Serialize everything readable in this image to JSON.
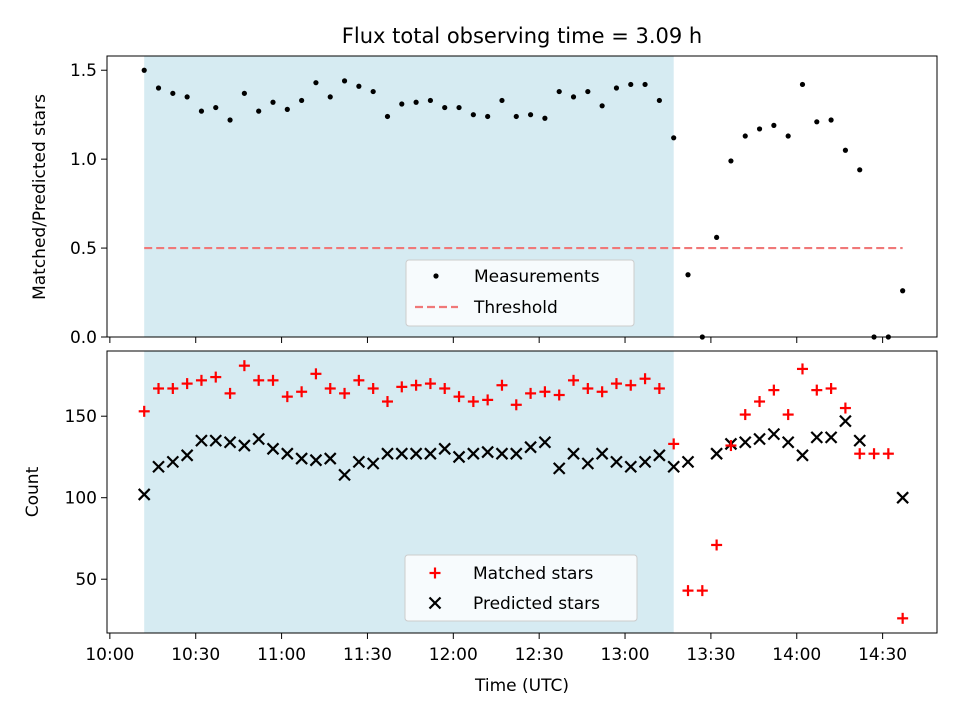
{
  "chart_data": [
    {
      "type": "scatter",
      "title": "Flux total observing time = 3.09 h",
      "xlabel": "",
      "ylabel": "Matched/Predicted stars",
      "ylim": [
        0,
        1.58
      ],
      "yticks": [
        0.0,
        0.5,
        1.0,
        1.5
      ],
      "ytick_labels": [
        "0.0",
        "0.5",
        "1.0",
        "1.5"
      ],
      "xlim": [
        "09:59",
        "14:49"
      ],
      "x_format": "HH:MM (UTC)",
      "highlight_span": [
        "10:12",
        "13:17"
      ],
      "highlight_color": "#add8e6",
      "legend_position": "lower-center",
      "series": [
        {
          "name": "Measurements",
          "marker": "dot",
          "color": "#000000",
          "x": [
            "10:12",
            "10:17",
            "10:22",
            "10:27",
            "10:32",
            "10:37",
            "10:42",
            "10:47",
            "10:52",
            "10:57",
            "11:02",
            "11:07",
            "11:12",
            "11:17",
            "11:22",
            "11:27",
            "11:32",
            "11:37",
            "11:42",
            "11:47",
            "11:52",
            "11:57",
            "12:02",
            "12:07",
            "12:12",
            "12:17",
            "12:22",
            "12:27",
            "12:32",
            "12:37",
            "12:42",
            "12:47",
            "12:52",
            "12:57",
            "13:02",
            "13:07",
            "13:12",
            "13:17",
            "13:22",
            "13:27",
            "13:32",
            "13:37",
            "13:42",
            "13:47",
            "13:52",
            "13:57",
            "14:02",
            "14:07",
            "14:12",
            "14:17",
            "14:22",
            "14:27",
            "14:32",
            "14:37"
          ],
          "values": [
            1.5,
            1.4,
            1.37,
            1.35,
            1.27,
            1.29,
            1.22,
            1.37,
            1.27,
            1.32,
            1.28,
            1.33,
            1.43,
            1.35,
            1.44,
            1.41,
            1.38,
            1.24,
            1.31,
            1.32,
            1.33,
            1.29,
            1.29,
            1.25,
            1.24,
            1.33,
            1.24,
            1.25,
            1.23,
            1.38,
            1.35,
            1.38,
            1.3,
            1.4,
            1.42,
            1.42,
            1.33,
            1.12,
            0.35,
            0.0,
            0.56,
            0.99,
            1.13,
            1.17,
            1.19,
            1.13,
            1.42,
            1.21,
            1.22,
            1.05,
            0.94,
            0.0,
            0.0,
            0.26
          ]
        },
        {
          "name": "Threshold",
          "marker": "dashed-line",
          "color": "#f07878",
          "x": [
            "10:12",
            "14:37"
          ],
          "values": [
            0.5,
            0.5
          ]
        }
      ]
    },
    {
      "type": "scatter",
      "title": "",
      "xlabel": "Time (UTC)",
      "ylabel": "Count",
      "ylim": [
        17,
        190
      ],
      "yticks": [
        50,
        100,
        150
      ],
      "ytick_labels": [
        "50",
        "100",
        "150"
      ],
      "xlim": [
        "09:59",
        "14:49"
      ],
      "xticks": [
        "10:00",
        "10:30",
        "11:00",
        "11:30",
        "12:00",
        "12:30",
        "13:00",
        "13:30",
        "14:00",
        "14:30"
      ],
      "highlight_span": [
        "10:12",
        "13:17"
      ],
      "highlight_color": "#add8e6",
      "legend_position": "lower-center",
      "series": [
        {
          "name": "Matched stars",
          "marker": "plus",
          "color": "#ff0000",
          "x": [
            "10:12",
            "10:17",
            "10:22",
            "10:27",
            "10:32",
            "10:37",
            "10:42",
            "10:47",
            "10:52",
            "10:57",
            "11:02",
            "11:07",
            "11:12",
            "11:17",
            "11:22",
            "11:27",
            "11:32",
            "11:37",
            "11:42",
            "11:47",
            "11:52",
            "11:57",
            "12:02",
            "12:07",
            "12:12",
            "12:17",
            "12:22",
            "12:27",
            "12:32",
            "12:37",
            "12:42",
            "12:47",
            "12:52",
            "12:57",
            "13:02",
            "13:07",
            "13:12",
            "13:17",
            "13:22",
            "13:27",
            "13:32",
            "13:37",
            "13:42",
            "13:47",
            "13:52",
            "13:57",
            "14:02",
            "14:07",
            "14:12",
            "14:17",
            "14:22",
            "14:27",
            "14:32",
            "14:37"
          ],
          "values": [
            153,
            167,
            167,
            170,
            172,
            174,
            164,
            181,
            172,
            172,
            162,
            165,
            176,
            167,
            164,
            172,
            167,
            159,
            168,
            169,
            170,
            167,
            162,
            159,
            160,
            169,
            157,
            164,
            165,
            163,
            172,
            167,
            165,
            170,
            169,
            173,
            167,
            133,
            43,
            43,
            71,
            132,
            151,
            159,
            166,
            151,
            179,
            166,
            167,
            155,
            127,
            127,
            127,
            26
          ]
        },
        {
          "name": "Predicted stars",
          "marker": "x",
          "color": "#000000",
          "x": [
            "10:12",
            "10:17",
            "10:22",
            "10:27",
            "10:32",
            "10:37",
            "10:42",
            "10:47",
            "10:52",
            "10:57",
            "11:02",
            "11:07",
            "11:12",
            "11:17",
            "11:22",
            "11:27",
            "11:32",
            "11:37",
            "11:42",
            "11:47",
            "11:52",
            "11:57",
            "12:02",
            "12:07",
            "12:12",
            "12:17",
            "12:22",
            "12:27",
            "12:32",
            "12:37",
            "12:42",
            "12:47",
            "12:52",
            "12:57",
            "13:02",
            "13:07",
            "13:12",
            "13:17",
            "13:22",
            "13:32",
            "13:37",
            "13:42",
            "13:47",
            "13:52",
            "13:57",
            "14:02",
            "14:07",
            "14:12",
            "14:17",
            "14:22",
            "14:37"
          ],
          "values": [
            102,
            119,
            122,
            126,
            135,
            135,
            134,
            132,
            136,
            130,
            127,
            124,
            123,
            124,
            114,
            122,
            121,
            127,
            127,
            127,
            127,
            130,
            125,
            127,
            128,
            127,
            127,
            131,
            134,
            118,
            127,
            121,
            127,
            122,
            119,
            122,
            126,
            119,
            122,
            127,
            133,
            134,
            136,
            139,
            134,
            126,
            137,
            137,
            147,
            135,
            100
          ]
        }
      ]
    }
  ]
}
